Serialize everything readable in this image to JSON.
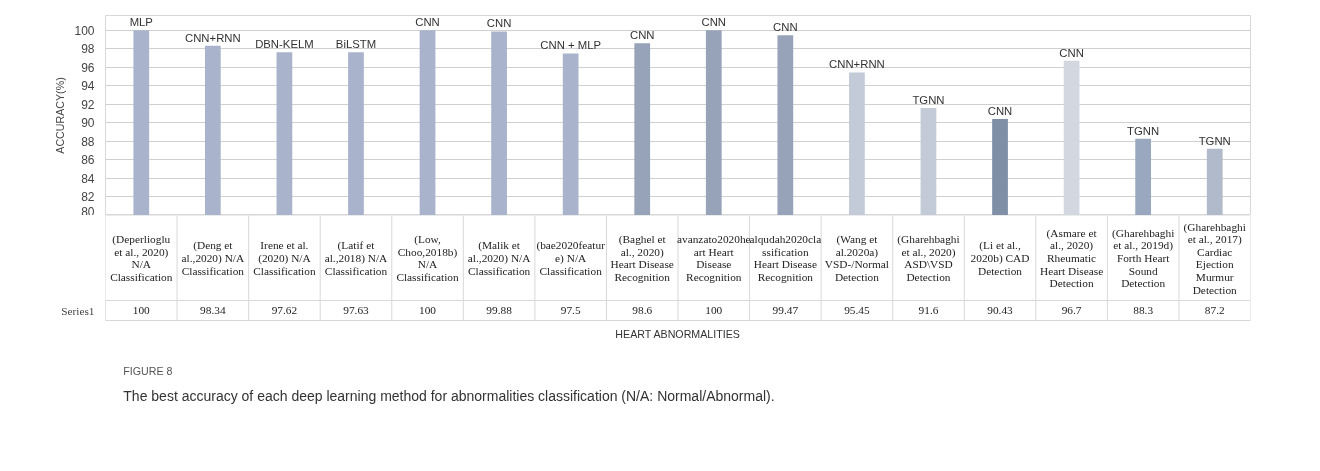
{
  "chart_data": {
    "type": "bar",
    "categories": [
      "(Deperlioglu et al., 2020) N/A Classification",
      "(Deng et al.,2020) N/A Classification",
      "Irene et al. (2020) N/A Classification",
      "(Latif et al.,2018) N/A Classification",
      "(Low, Choo,2018b) N/A Classification",
      "(Malik et al.,2020) N/A Classification",
      "(bae2020feature) N/A Classification",
      "(Baghel et al., 2020) Heart Disease Recognition",
      "avanzato2020heart Heart Disease Recognition",
      "alqudah2020classification Heart Disease Recognition",
      "(Wang et al.2020a) VSD-/Normal Detection",
      "(Gharehbaghi et al., 2020) ASD\\VSD Detection",
      "(Li et al., 2020b) CAD Detection",
      "(Asmare et al., 2020) Rheumatic Heart Disease Detection",
      "(Gharehbaghi et al., 2019d) Forth Heart Sound Detection",
      "(Gharehbaghi et al., 2017) Cardiac Ejection Murmur Detection"
    ],
    "series": [
      {
        "name": "Series1",
        "values": [
          100,
          98.34,
          97.62,
          97.63,
          100,
          99.88,
          97.5,
          98.6,
          100,
          99.47,
          95.45,
          91.6,
          90.43,
          96.7,
          88.3,
          87.2
        ],
        "colors": [
          "#a9b4cc",
          "#a9b4cc",
          "#a9b4cc",
          "#a9b4cc",
          "#a9b4cc",
          "#a9b4cc",
          "#a9b4cc",
          "#96a3b8",
          "#96a3b8",
          "#96a3b8",
          "#c3cbd8",
          "#c3cbd8",
          "#7f8fa6",
          "#d3d8e0",
          "#9aa8bf",
          "#b0bacb"
        ]
      }
    ],
    "data_labels": true,
    "ylabel": "ACCURACY(%)",
    "xlabel": "HEART ABNORMALITIES",
    "ylim": [
      80,
      101.6
    ],
    "yticks": [
      80,
      82,
      84,
      86,
      88,
      90,
      92,
      94,
      96,
      98,
      100
    ],
    "grid": "y",
    "annotations": [
      "MLP",
      "CNN+RNN",
      "DBN-KELM",
      "BiLSTM",
      "CNN",
      "CNN",
      "CNN + MLP",
      "CNN",
      "CNN",
      "CNN",
      "CNN+RNN",
      "TGNN",
      "CNN",
      "CNN",
      "TGNN",
      "TGNN",
      "FIGURE 8",
      "The best accuracy of each deep learning method for abnormalities classification (N/A: Normal/Abnormal)."
    ]
  }
}
